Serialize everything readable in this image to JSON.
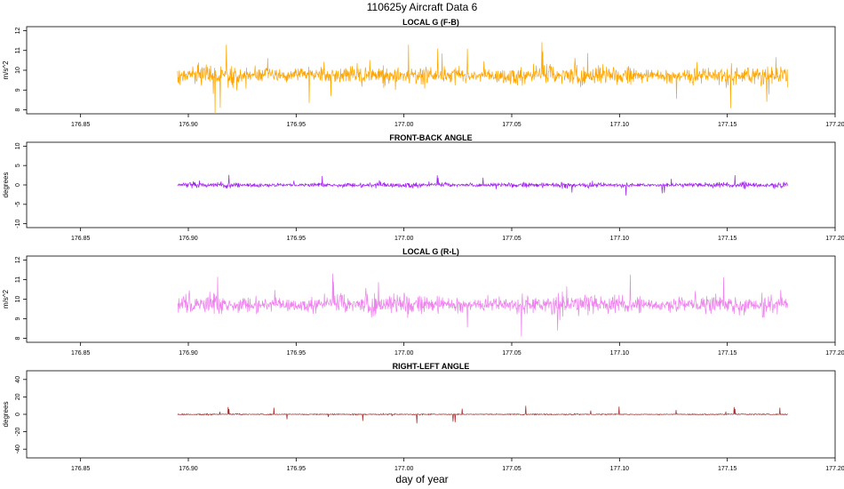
{
  "page": {
    "title": "110625y   Aircraft Data 6",
    "xlabel": "day of year"
  },
  "chart_data": [
    {
      "type": "line",
      "title": "LOCAL G (F-B)",
      "ylabel": "m/s^2",
      "color": "#ffa500",
      "xlim": [
        176.825,
        177.2
      ],
      "ylim": [
        7.8,
        12.2
      ],
      "xticks": [
        "176.85",
        "176.90",
        "176.95",
        "177.00",
        "177.05",
        "177.10",
        "177.15",
        "177.20"
      ],
      "yticks": [
        "8",
        "9",
        "10",
        "11",
        "12"
      ],
      "series": [
        {
          "x_range": [
            176.895,
            177.178
          ],
          "baseline": 9.75,
          "noise": 0.45,
          "spike": 1.8
        }
      ]
    },
    {
      "type": "line",
      "title": "FRONT-BACK ANGLE",
      "ylabel": "degrees",
      "color": "#a020f0",
      "xlim": [
        176.825,
        177.2
      ],
      "ylim": [
        -11,
        11
      ],
      "xticks": [
        "176.85",
        "176.90",
        "176.95",
        "177.00",
        "177.05",
        "177.10",
        "177.15",
        "177.20"
      ],
      "yticks": [
        "-10",
        "-5",
        "0",
        "5",
        "10"
      ],
      "series": [
        {
          "x_range": [
            176.895,
            177.178
          ],
          "baseline": 0.0,
          "noise": 0.6,
          "spike": 3.0
        }
      ]
    },
    {
      "type": "line",
      "title": "LOCAL G (R-L)",
      "ylabel": "m/s^2",
      "color": "#ee82ee",
      "xlim": [
        176.825,
        177.2
      ],
      "ylim": [
        7.8,
        12.2
      ],
      "xticks": [
        "176.85",
        "176.90",
        "176.95",
        "177.00",
        "177.05",
        "177.10",
        "177.15",
        "177.20"
      ],
      "yticks": [
        "8",
        "9",
        "10",
        "11",
        "12"
      ],
      "series": [
        {
          "x_range": [
            176.895,
            177.178
          ],
          "baseline": 9.75,
          "noise": 0.45,
          "spike": 1.8
        }
      ]
    },
    {
      "type": "line",
      "title": "RIGHT-LEFT ANGLE",
      "ylabel": "degrees",
      "color": "#a52a2a",
      "xlim": [
        176.825,
        177.2
      ],
      "ylim": [
        -50,
        50
      ],
      "xticks": [
        "176.85",
        "176.90",
        "176.95",
        "177.00",
        "177.05",
        "177.10",
        "177.15",
        "177.20"
      ],
      "yticks": [
        "-40",
        "-20",
        "0",
        "20",
        "40"
      ],
      "series": [
        {
          "x_range": [
            176.895,
            177.178
          ],
          "baseline": 0.0,
          "noise": 0.6,
          "spike": 12.0
        }
      ]
    }
  ]
}
